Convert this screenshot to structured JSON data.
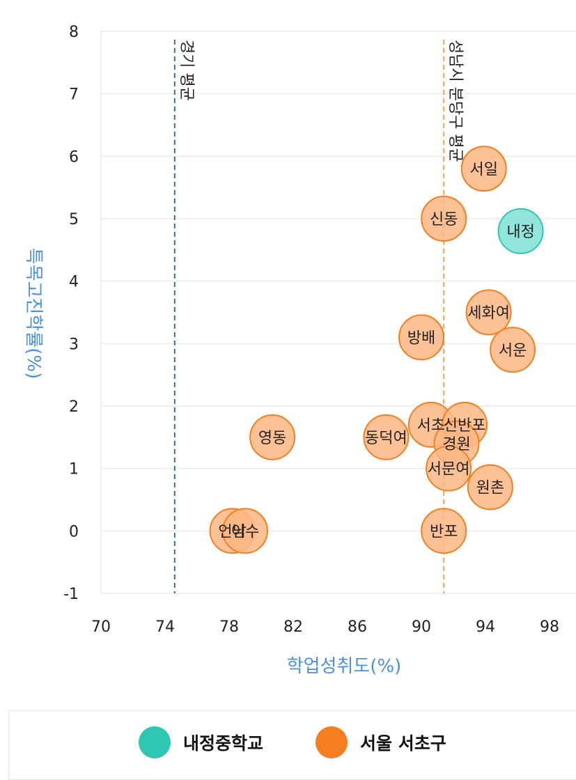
{
  "chart_data": {
    "type": "scatter",
    "xlabel": "학업성취도(%)",
    "ylabel": "특목고진학률(%)",
    "xlim": [
      70,
      100
    ],
    "ylim": [
      -1,
      8
    ],
    "xticks": [
      70,
      74,
      78,
      82,
      86,
      90,
      94,
      98
    ],
    "yticks": [
      -1,
      0,
      1,
      2,
      3,
      4,
      5,
      6,
      7,
      8
    ],
    "grid": true,
    "reference_lines": [
      {
        "label": "경기 평균",
        "x": 74.6,
        "color": "#2e6fa0"
      },
      {
        "label": "성남시 분당구 평균",
        "x": 91.4,
        "color": "#f5a34a"
      }
    ],
    "series": [
      {
        "name": "내정중학교",
        "color": "#2ec7b4",
        "points": [
          {
            "label": "내정",
            "x": 96.2,
            "y": 4.8
          }
        ]
      },
      {
        "name": "서울 서초구",
        "color": "#f57e20",
        "points": [
          {
            "label": "서일",
            "x": 93.9,
            "y": 5.8
          },
          {
            "label": "신동",
            "x": 91.4,
            "y": 5.0
          },
          {
            "label": "세화여",
            "x": 94.2,
            "y": 3.5
          },
          {
            "label": "방배",
            "x": 90.0,
            "y": 3.1
          },
          {
            "label": "서운",
            "x": 95.7,
            "y": 2.9
          },
          {
            "label": "영동",
            "x": 80.7,
            "y": 1.5
          },
          {
            "label": "동덕여",
            "x": 87.8,
            "y": 1.5
          },
          {
            "label": "서초",
            "x": 90.6,
            "y": 1.7
          },
          {
            "label": "신반포",
            "x": 92.7,
            "y": 1.7
          },
          {
            "label": "경원",
            "x": 92.2,
            "y": 1.4
          },
          {
            "label": "서문여",
            "x": 91.7,
            "y": 1.0
          },
          {
            "label": "원촌",
            "x": 94.3,
            "y": 0.7
          },
          {
            "label": "언남",
            "x": 78.2,
            "y": 0.0
          },
          {
            "label": "이수",
            "x": 79.0,
            "y": 0.0
          },
          {
            "label": "반포",
            "x": 91.4,
            "y": 0.0
          }
        ]
      }
    ]
  },
  "legend": {
    "items": [
      {
        "label": "내정중학교",
        "color": "#2ec7b4"
      },
      {
        "label": "서울 서초구",
        "color": "#f57e20"
      }
    ]
  }
}
